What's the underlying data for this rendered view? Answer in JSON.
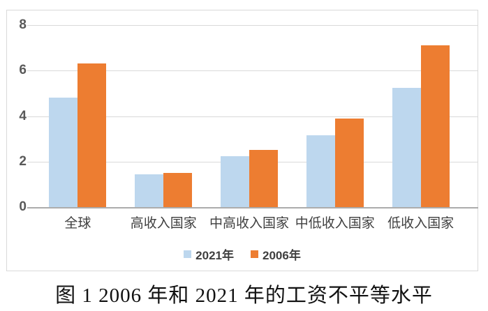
{
  "chart_data": {
    "type": "bar",
    "caption": "图 1 2006 年和 2021 年的工资不平等水平",
    "categories": [
      "全球",
      "高收入国家",
      "中高收入国家",
      "中低收入国家",
      "低收入国家"
    ],
    "series": [
      {
        "name": "2021年",
        "color": "#BDD7EE",
        "values": [
          4.8,
          1.45,
          2.25,
          3.15,
          5.25
        ]
      },
      {
        "name": "2006年",
        "color": "#ED7D31",
        "values": [
          6.3,
          1.5,
          2.5,
          3.9,
          7.1
        ]
      }
    ],
    "ylim": [
      0,
      8
    ],
    "yticks": [
      0,
      2,
      4,
      6,
      8
    ],
    "grid": true,
    "legend_position": "bottom-inside",
    "xlabel": "",
    "ylabel": ""
  },
  "colors": {
    "background": "#FFFFFF",
    "frame_border": "#D9D9D9",
    "gridline": "#D9D9D9",
    "axis_line": "#ACACAC",
    "tick_label": "#595959",
    "category_label": "#3F3F3F",
    "legend_label": "#3F3F3F",
    "caption_text": "#111111",
    "series_2021": "#BDD7EE",
    "series_2006": "#ED7D31"
  }
}
